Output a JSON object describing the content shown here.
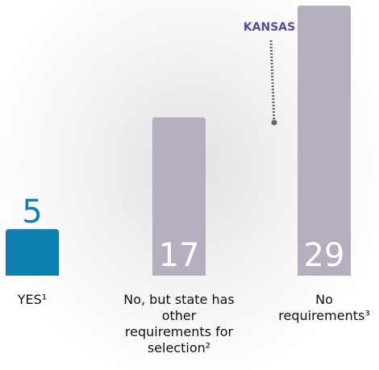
{
  "chart_data": {
    "type": "bar",
    "categories": [
      "YES¹",
      "No, but state has other requirements for selection²",
      "No requirements³"
    ],
    "values": [
      5,
      17,
      29
    ],
    "colors": [
      "#0f7fb0",
      "#b4aebf",
      "#b4aebf"
    ],
    "value_label_colors": [
      "#0f7fb0",
      "#ffffff",
      "#ffffff"
    ],
    "annotation": {
      "text": "KANSAS",
      "color": "#5a4a9c",
      "category": 2
    }
  }
}
